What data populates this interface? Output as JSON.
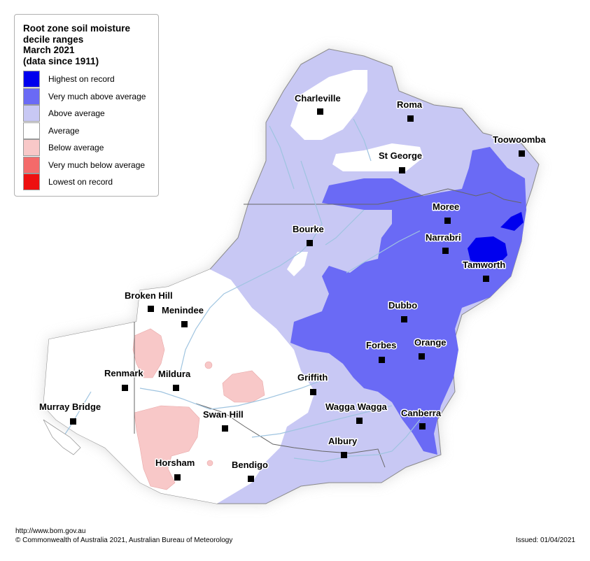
{
  "legend": {
    "title_lines": [
      "Root zone soil moisture",
      "decile ranges",
      "March 2021",
      "(data since 1911)"
    ],
    "items": [
      {
        "label": "Highest on record",
        "color": "#0000ee"
      },
      {
        "label": "Very much above average",
        "color": "#6a6af5"
      },
      {
        "label": "Above average",
        "color": "#c8c8f4"
      },
      {
        "label": "Average",
        "color": "#ffffff"
      },
      {
        "label": "Below average",
        "color": "#f8c8c8"
      },
      {
        "label": "Very much below average",
        "color": "#f46a6a"
      },
      {
        "label": "Lowest on record",
        "color": "#ee1010"
      }
    ]
  },
  "towns": [
    "Charleville",
    "Roma",
    "Toowoomba",
    "St George",
    "Moree",
    "Bourke",
    "Narrabri",
    "Tamworth",
    "Broken Hill",
    "Menindee",
    "Dubbo",
    "Orange",
    "Forbes",
    "Renmark",
    "Mildura",
    "Griffith",
    "Murray Bridge",
    "Swan Hill",
    "Wagga Wagga",
    "Canberra",
    "Albury",
    "Horsham",
    "Bendigo"
  ],
  "footer": {
    "url": "http://www.bom.gov.au",
    "copyright": "© Commonwealth of Australia 2021, Australian Bureau of Meteorology",
    "issued": "Issued: 01/04/2021"
  }
}
